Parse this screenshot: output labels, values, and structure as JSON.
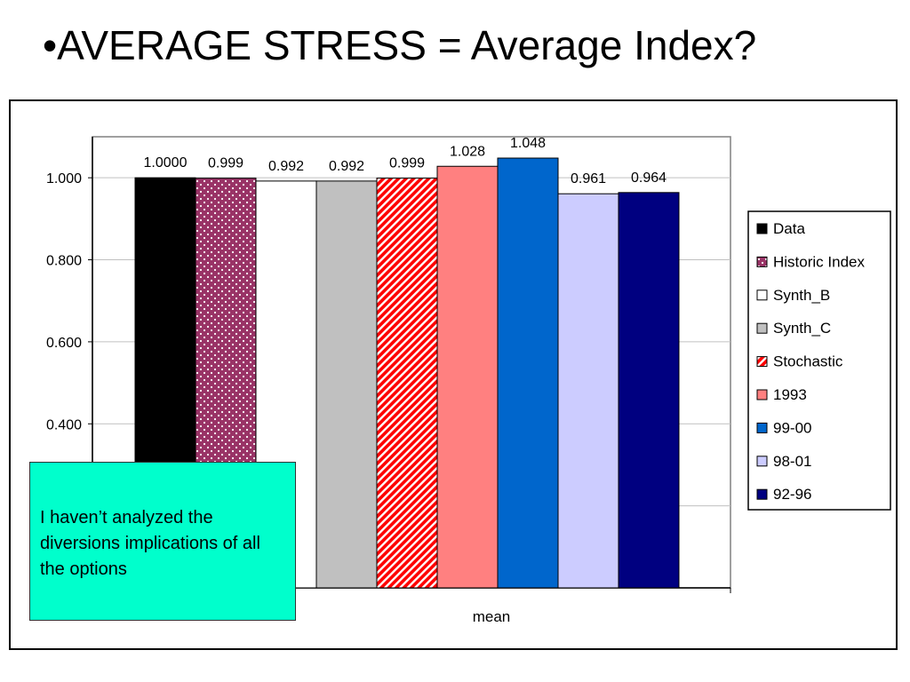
{
  "slide": {
    "title": "•AVERAGE STRESS = Average Index?",
    "note": "I haven’t analyzed the diversions implications of all the options"
  },
  "chart_data": {
    "type": "bar",
    "categories": [
      "mean"
    ],
    "series": [
      {
        "name": "Data",
        "values": [
          1.0
        ],
        "label": "1.0000",
        "color": "#000000",
        "pattern": "solid"
      },
      {
        "name": "Historic Index",
        "values": [
          0.999
        ],
        "label": "0.999",
        "color": "#993366",
        "pattern": "dots"
      },
      {
        "name": "Synth_B",
        "values": [
          0.992
        ],
        "label": "0.992",
        "color": "#FFFFFF",
        "pattern": "solid"
      },
      {
        "name": "Synth_C",
        "values": [
          0.992
        ],
        "label": "0.992",
        "color": "#C0C0C0",
        "pattern": "solid"
      },
      {
        "name": "Stochastic",
        "values": [
          0.999
        ],
        "label": "0.999",
        "color": "#FF0000",
        "pattern": "diagonal"
      },
      {
        "name": "1993",
        "values": [
          1.028
        ],
        "label": "1.028",
        "color": "#FF8080",
        "pattern": "solid"
      },
      {
        "name": "99-00",
        "values": [
          1.048
        ],
        "label": "1.048",
        "color": "#0066CC",
        "pattern": "solid"
      },
      {
        "name": "98-01",
        "values": [
          0.961
        ],
        "label": "0.961",
        "color": "#CCCCFF",
        "pattern": "solid"
      },
      {
        "name": "92-96",
        "values": [
          0.964
        ],
        "label": "0.964",
        "color": "#000080",
        "pattern": "solid"
      }
    ],
    "y_ticks": [
      "0.400",
      "0.600",
      "0.800",
      "1.000"
    ],
    "ylim": [
      0.0,
      1.1
    ],
    "grid": true,
    "legend": "right"
  }
}
